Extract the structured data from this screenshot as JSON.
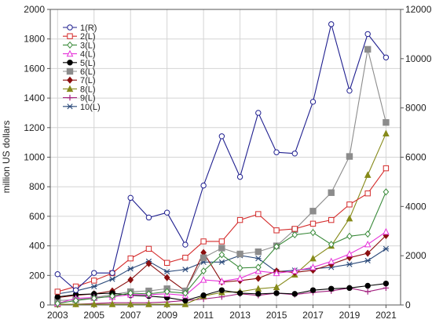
{
  "chart_data": {
    "type": "line",
    "title": "",
    "xlabel": "",
    "ylabel": "million US dollars",
    "y2label": "",
    "x": [
      2003,
      2004,
      2005,
      2006,
      2007,
      2008,
      2009,
      2010,
      2011,
      2012,
      2013,
      2014,
      2015,
      2016,
      2017,
      2018,
      2019,
      2020,
      2021
    ],
    "xticks": [
      "2003",
      "2005",
      "2007",
      "2009",
      "2011",
      "2013",
      "2015",
      "2017",
      "2019",
      "2021"
    ],
    "ylim": [
      0,
      2000
    ],
    "yticks": [
      "0",
      "200",
      "400",
      "600",
      "800",
      "1000",
      "1200",
      "1400",
      "1600",
      "1800",
      "2000"
    ],
    "y2lim": [
      0,
      12000
    ],
    "y2ticks": [
      "0",
      "2000",
      "4000",
      "6000",
      "8000",
      "10000",
      "12000"
    ],
    "grid": true,
    "legend_position": "top-left",
    "series": [
      {
        "name": "1(R)",
        "axis": "right",
        "color": "#1f1f8f",
        "marker": "circle-open",
        "values": [
          1250,
          600,
          1300,
          1300,
          4350,
          3550,
          3750,
          2450,
          4850,
          6850,
          5200,
          7800,
          6200,
          6150,
          8250,
          11400,
          8700,
          11000,
          10050
        ]
      },
      {
        "name": "2(L)",
        "axis": "left",
        "color": "#d42a2a",
        "marker": "square-open",
        "values": [
          90,
          125,
          165,
          215,
          315,
          380,
          285,
          320,
          430,
          430,
          575,
          615,
          505,
          515,
          550,
          575,
          680,
          755,
          925
        ]
      },
      {
        "name": "3(L)",
        "axis": "left",
        "color": "#3a8a3a",
        "marker": "diamond-open",
        "values": [
          10,
          30,
          45,
          60,
          80,
          75,
          90,
          80,
          230,
          340,
          250,
          255,
          395,
          475,
          490,
          410,
          465,
          480,
          765
        ]
      },
      {
        "name": "4(L)",
        "axis": "left",
        "color": "#e633d9",
        "marker": "triangle-open",
        "values": [
          10,
          45,
          50,
          55,
          70,
          70,
          75,
          65,
          170,
          160,
          180,
          230,
          215,
          230,
          255,
          295,
          345,
          410,
          495
        ]
      },
      {
        "name": "5(L)",
        "axis": "left",
        "color": "#000000",
        "marker": "circle-filled",
        "values": [
          55,
          70,
          75,
          80,
          65,
          60,
          50,
          30,
          65,
          100,
          80,
          75,
          80,
          75,
          100,
          110,
          115,
          130,
          145
        ]
      },
      {
        "name": "6(L)",
        "axis": "left",
        "color": "#8c8c8c",
        "marker": "square-filled",
        "values": [
          30,
          35,
          50,
          70,
          90,
          95,
          110,
          95,
          320,
          385,
          345,
          360,
          400,
          510,
          635,
          760,
          1005,
          1730,
          1235
        ]
      },
      {
        "name": "7(L)",
        "axis": "left",
        "color": "#8b0f0f",
        "marker": "diamond-filled",
        "values": [
          50,
          65,
          75,
          95,
          170,
          280,
          185,
          95,
          355,
          155,
          165,
          180,
          230,
          220,
          235,
          275,
          320,
          350,
          470
        ]
      },
      {
        "name": "8(L)",
        "axis": "left",
        "color": "#868a1a",
        "marker": "triangle-filled",
        "values": [
          5,
          5,
          5,
          5,
          5,
          5,
          5,
          5,
          60,
          85,
          90,
          110,
          120,
          205,
          315,
          400,
          585,
          880,
          1160
        ]
      },
      {
        "name": "9(L)",
        "axis": "left",
        "color": "#a3207f",
        "marker": "plus",
        "values": [
          5,
          5,
          10,
          15,
          15,
          15,
          20,
          30,
          40,
          55,
          75,
          65,
          80,
          70,
          85,
          95,
          115,
          90,
          115
        ]
      },
      {
        "name": "10(L)",
        "axis": "left",
        "color": "#2b4a7a",
        "marker": "asterisk",
        "values": [
          75,
          95,
          125,
          175,
          245,
          295,
          225,
          240,
          290,
          290,
          335,
          315,
          225,
          235,
          245,
          255,
          275,
          300,
          380
        ]
      }
    ]
  }
}
